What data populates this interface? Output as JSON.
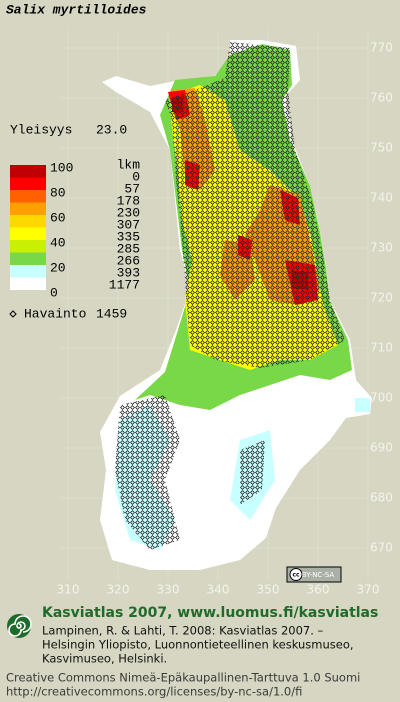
{
  "title": "Salix myrtilloides",
  "frequency": {
    "label": "Yleisyys",
    "value": "23.0"
  },
  "legend": {
    "scale_labels": [
      100,
      80,
      60,
      40,
      20,
      0
    ],
    "count_header": "lkm",
    "counts": [
      0,
      57,
      178,
      230,
      307,
      335,
      285,
      266,
      393,
      1177
    ],
    "colors": [
      "#c00000",
      "#ff0000",
      "#ff6000",
      "#ffa000",
      "#ffd800",
      "#ffff00",
      "#c8f000",
      "#78d848",
      "#c8ffff",
      "#ffffff"
    ]
  },
  "observations": {
    "label": "Havainto",
    "count": 1459
  },
  "map": {
    "yticks": [
      770,
      760,
      750,
      740,
      730,
      720,
      710,
      700,
      690,
      680,
      670
    ],
    "xticks": [
      310,
      320,
      330,
      340,
      350,
      360,
      370
    ]
  },
  "license_badge": "BY-NC-SA",
  "footer": {
    "brand": "Kasviatlas 2007, www.luomus.fi/kasviatlas",
    "citation": [
      "Lampinen, R. & Lahti, T. 2008: Kasviatlas 2007. –",
      "Helsingin Yliopisto, Luonnontieteellinen keskusmuseo,",
      "Kasvimuseo, Helsinki."
    ],
    "license": [
      "Creative Commons Nimeä-Epäkaupallinen-Tarttuva 1.0 Suomi",
      "http://creativecommons.org/licenses/by-nc-sa/1.0/fi"
    ]
  }
}
